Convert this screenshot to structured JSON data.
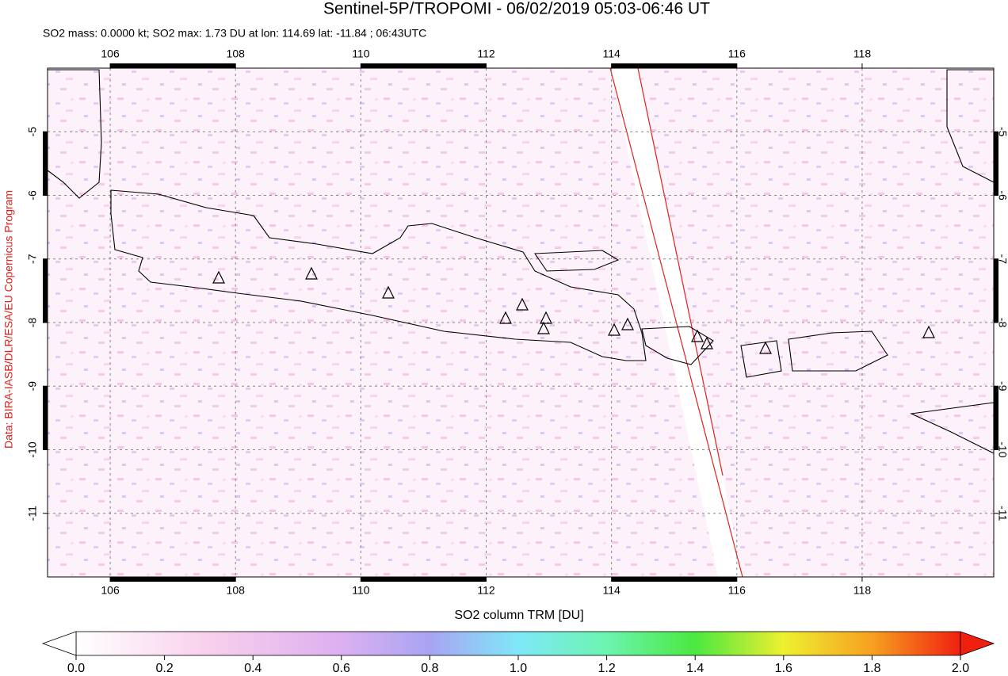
{
  "title": "Sentinel-5P/TROPOMI - 06/02/2019 05:03-06:46 UT",
  "subtitle": "SO2 mass: 0.0000 kt; SO2 max: 1.73 DU at lon: 114.69 lat: -11.84 ; 06:43UTC",
  "credit": "Data: BIRA-IASB/DLR/ESA/EU Copernicus Program",
  "map": {
    "xlim": [
      105,
      120.1
    ],
    "ylim": [
      -12,
      -4
    ],
    "xticks": [
      106,
      108,
      110,
      112,
      114,
      116,
      118
    ],
    "yticks": [
      -5,
      -6,
      -7,
      -8,
      -9,
      -10,
      -11
    ]
  },
  "colorbar": {
    "label": "SO2 column TRM [DU]",
    "lim": [
      0,
      2
    ],
    "ticks": [
      {
        "value": 0,
        "label": "0.0"
      },
      {
        "value": 0.2,
        "label": "0.2"
      },
      {
        "value": 0.4,
        "label": "0.4"
      },
      {
        "value": 0.6,
        "label": "0.6"
      },
      {
        "value": 0.8,
        "label": "0.8"
      },
      {
        "value": 1,
        "label": "1.0"
      },
      {
        "value": 1.2,
        "label": "1.2"
      },
      {
        "value": 1.4,
        "label": "1.4"
      },
      {
        "value": 1.6,
        "label": "1.6"
      },
      {
        "value": 1.8,
        "label": "1.8"
      },
      {
        "value": 2,
        "label": "2.0"
      }
    ]
  }
}
